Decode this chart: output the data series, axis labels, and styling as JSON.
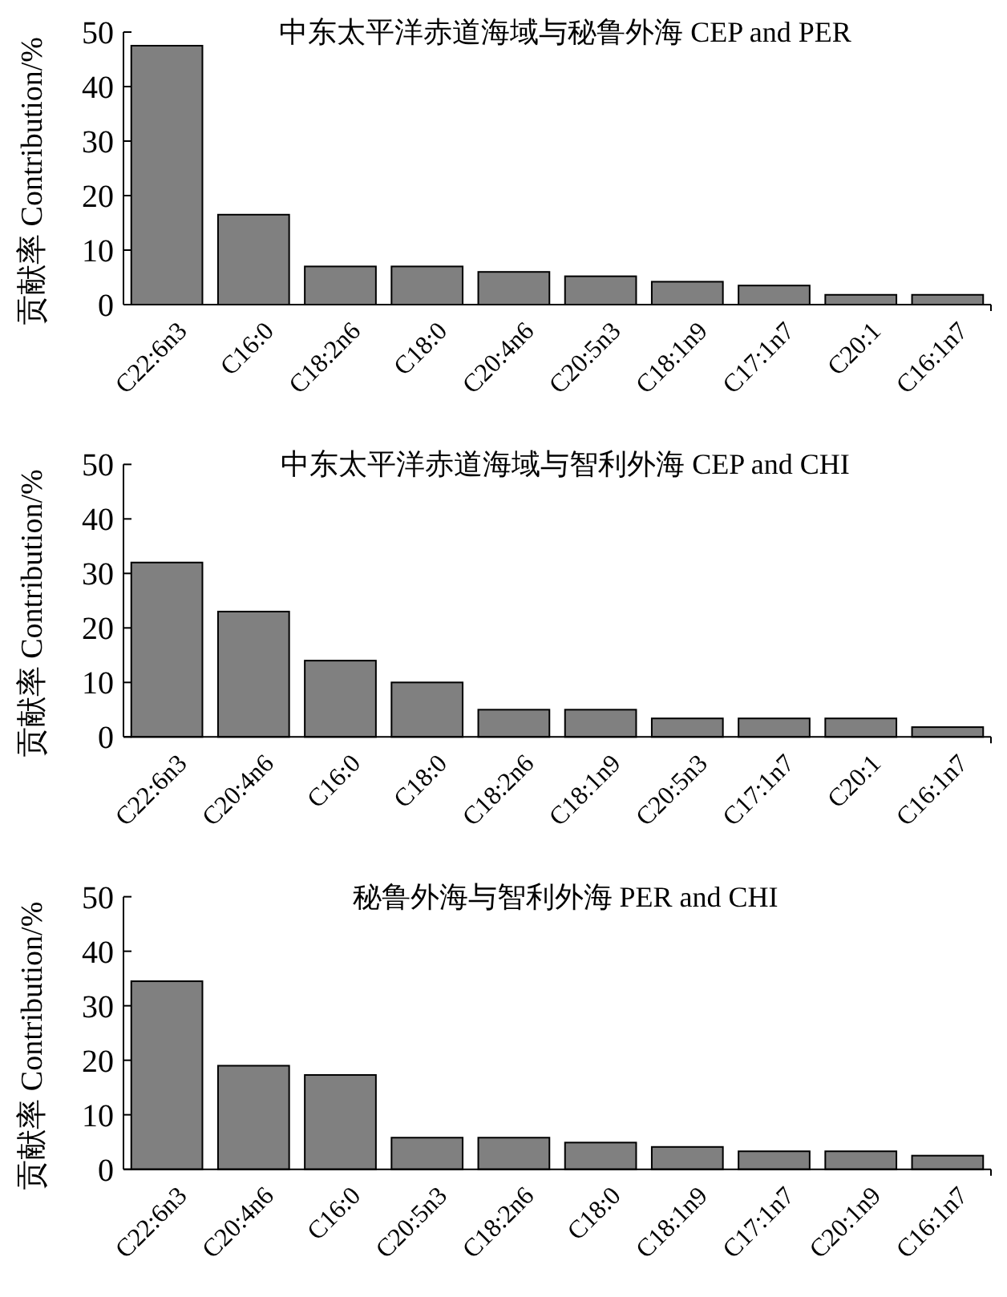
{
  "chart_data": [
    {
      "type": "bar",
      "title": "中东太平洋赤道海域与秘鲁外海 CEP and PER",
      "ylabel": "贡献率 Contribution/%",
      "categories": [
        "C22:6n3",
        "C16:0",
        "C18:2n6",
        "C18:0",
        "C20:4n6",
        "C20:5n3",
        "C18:1n9",
        "C17:1n7",
        "C20:1",
        "C16:1n7"
      ],
      "values": [
        47.5,
        16.5,
        7,
        7,
        6,
        5.2,
        4.2,
        3.5,
        1.8,
        1.8
      ],
      "color": "#808080",
      "ylim": [
        0,
        50
      ],
      "yticks": [
        0,
        10,
        20,
        30,
        40,
        50
      ],
      "grid": false
    },
    {
      "type": "bar",
      "title": "中东太平洋赤道海域与智利外海 CEP and CHI",
      "ylabel": "贡献率 Contribution/%",
      "categories": [
        "C22:6n3",
        "C20:4n6",
        "C16:0",
        "C18:0",
        "C18:2n6",
        "C18:1n9",
        "C20:5n3",
        "C17:1n7",
        "C20:1",
        "C16:1n7"
      ],
      "values": [
        32,
        23,
        14,
        10,
        5,
        5,
        3.4,
        3.4,
        3.4,
        1.8
      ],
      "color": "#808080",
      "ylim": [
        0,
        50
      ],
      "yticks": [
        0,
        10,
        20,
        30,
        40,
        50
      ],
      "grid": false
    },
    {
      "type": "bar",
      "title": "秘鲁外海与智利外海 PER and CHI",
      "ylabel": "贡献率 Contribution/%",
      "categories": [
        "C22:6n3",
        "C20:4n6",
        "C16:0",
        "C20:5n3",
        "C18:2n6",
        "C18:0",
        "C18:1n9",
        "C17:1n7",
        "C20:1n9",
        "C16:1n7"
      ],
      "values": [
        34.5,
        19,
        17.3,
        5.8,
        5.8,
        4.9,
        4.1,
        3.3,
        3.3,
        2.5
      ],
      "color": "#808080",
      "ylim": [
        0,
        50
      ],
      "yticks": [
        0,
        10,
        20,
        30,
        40,
        50
      ],
      "grid": false
    }
  ]
}
